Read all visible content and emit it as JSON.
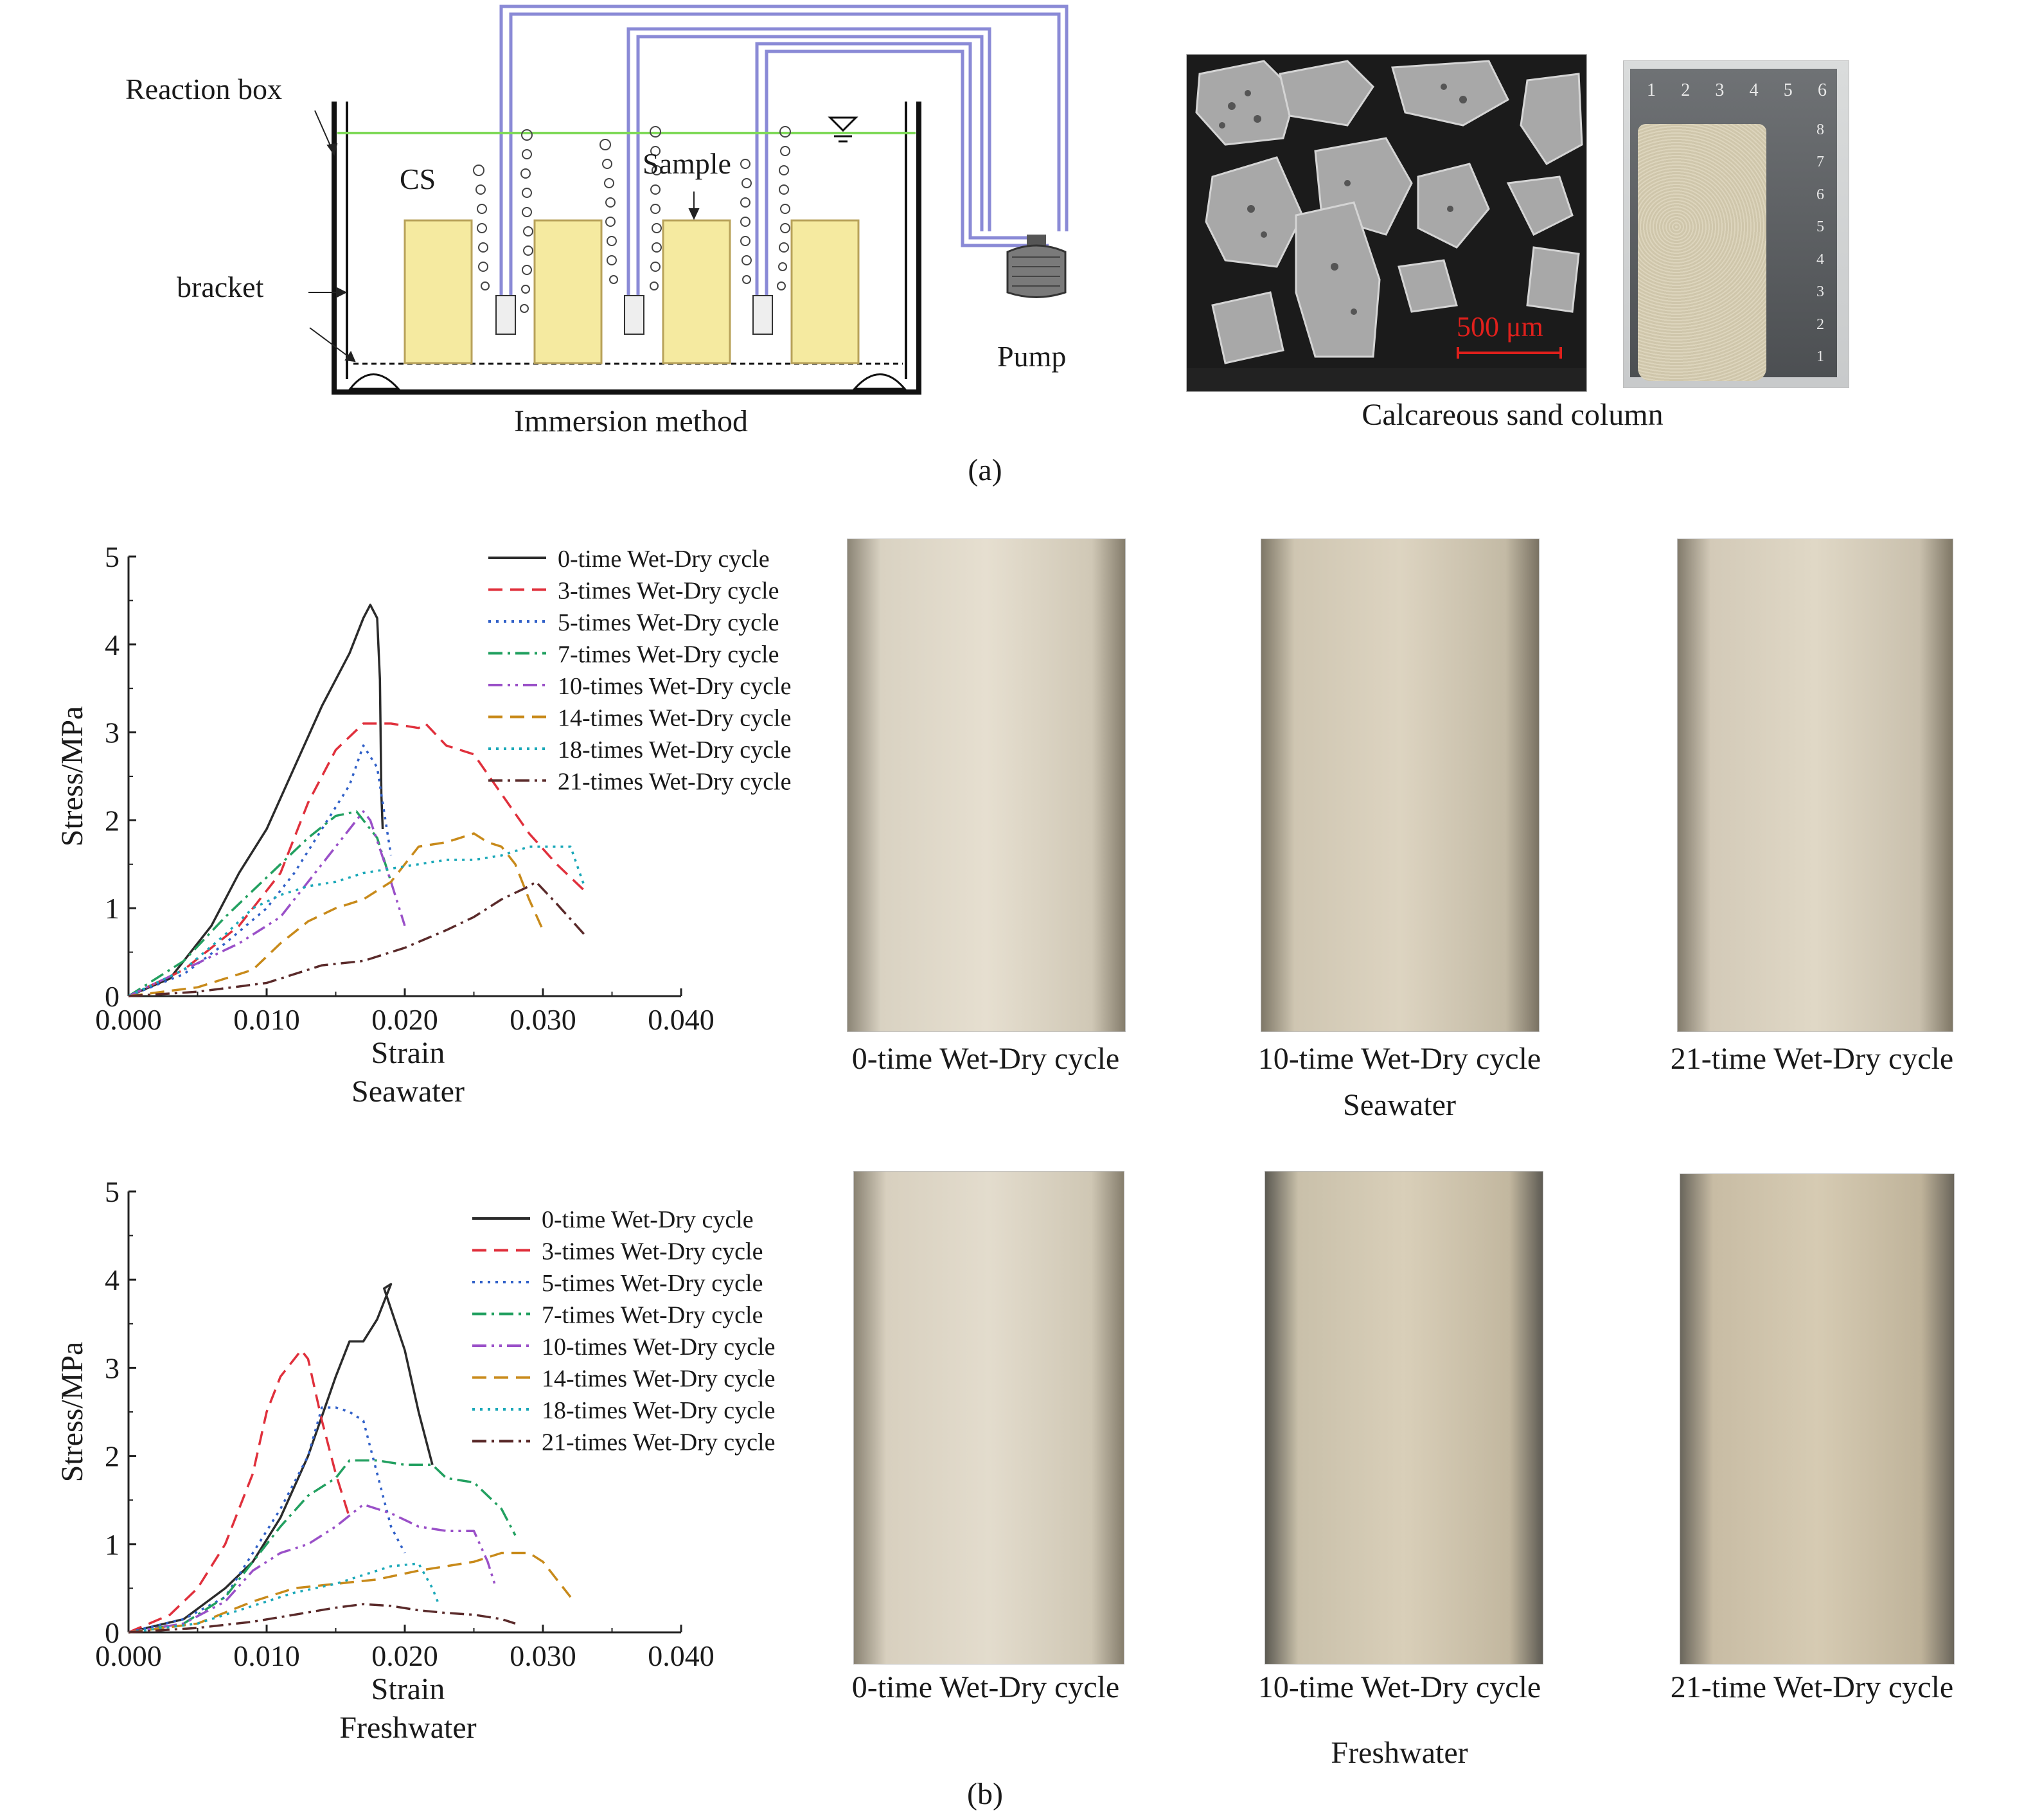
{
  "panel_a": {
    "schematic": {
      "reaction_box_label": "Reaction box",
      "cs_label": "CS",
      "sample_label": "Sample",
      "bracket_label": "bracket",
      "pump_label": "Pump",
      "caption": "Immersion method",
      "colors": {
        "water_line": "#7ed957",
        "tube": "#8a8ad6",
        "sand": "#f5eaa0",
        "sand_border": "#b8a25a"
      }
    },
    "sem": {
      "scale_bar_label": "500 μm",
      "scale_color": "#e0201c"
    },
    "ruler_ticks": [
      "1",
      "2",
      "3",
      "4",
      "5",
      "6"
    ],
    "ruler_side_ticks": [
      "8",
      "7",
      "6",
      "5",
      "4",
      "3",
      "2",
      "1"
    ],
    "photo_caption": "Calcareous sand column",
    "label": "(a)"
  },
  "panel_b": {
    "label": "(b)",
    "seawater_caption": "Seawater",
    "freshwater_caption": "Freshwater",
    "photo_captions_sea": [
      "0-time Wet-Dry cycle",
      "10-time Wet-Dry cycle",
      "21-time Wet-Dry cycle"
    ],
    "photo_captions_fresh": [
      "0-time Wet-Dry cycle",
      "10-time Wet-Dry cycle",
      "21-time Wet-Dry cycle"
    ]
  },
  "chart_data": [
    {
      "type": "line",
      "title": "Seawater",
      "xlabel": "Strain",
      "ylabel": "Stress/MPa",
      "xlim": [
        0,
        0.04
      ],
      "ylim": [
        0,
        5
      ],
      "xticks": [
        "0.000",
        "0.010",
        "0.020",
        "0.030",
        "0.040"
      ],
      "yticks": [
        "0",
        "1",
        "2",
        "3",
        "4",
        "5"
      ],
      "legend_position": "top-right",
      "series": [
        {
          "name": "0-time Wet-Dry cycle",
          "color": "#2b2b2b",
          "dash": "solid",
          "points": [
            [
              0,
              0
            ],
            [
              0.003,
              0.2
            ],
            [
              0.006,
              0.8
            ],
            [
              0.008,
              1.4
            ],
            [
              0.01,
              1.9
            ],
            [
              0.012,
              2.6
            ],
            [
              0.014,
              3.3
            ],
            [
              0.016,
              3.9
            ],
            [
              0.017,
              4.3
            ],
            [
              0.0175,
              4.45
            ],
            [
              0.018,
              4.3
            ],
            [
              0.0182,
              3.6
            ],
            [
              0.0183,
              2.3
            ],
            [
              0.0184,
              1.9
            ]
          ]
        },
        {
          "name": "3-times Wet-Dry cycle",
          "color": "#e0303c",
          "dash": "dashed",
          "points": [
            [
              0,
              0
            ],
            [
              0.004,
              0.3
            ],
            [
              0.008,
              0.8
            ],
            [
              0.011,
              1.4
            ],
            [
              0.013,
              2.2
            ],
            [
              0.015,
              2.8
            ],
            [
              0.017,
              3.1
            ],
            [
              0.019,
              3.1
            ],
            [
              0.021,
              3.05
            ],
            [
              0.0215,
              3.1
            ],
            [
              0.023,
              2.85
            ],
            [
              0.025,
              2.75
            ],
            [
              0.027,
              2.3
            ],
            [
              0.029,
              1.85
            ],
            [
              0.031,
              1.5
            ],
            [
              0.033,
              1.2
            ]
          ]
        },
        {
          "name": "5-times Wet-Dry cycle",
          "color": "#3060c8",
          "dash": "dotted",
          "points": [
            [
              0,
              0
            ],
            [
              0.004,
              0.25
            ],
            [
              0.007,
              0.6
            ],
            [
              0.01,
              1.0
            ],
            [
              0.012,
              1.4
            ],
            [
              0.014,
              1.9
            ],
            [
              0.016,
              2.4
            ],
            [
              0.017,
              2.85
            ],
            [
              0.018,
              2.6
            ],
            [
              0.019,
              1.6
            ]
          ]
        },
        {
          "name": "7-times Wet-Dry cycle",
          "color": "#22a060",
          "dash": "dashdot",
          "points": [
            [
              0,
              0
            ],
            [
              0.004,
              0.4
            ],
            [
              0.007,
              0.9
            ],
            [
              0.009,
              1.2
            ],
            [
              0.011,
              1.5
            ],
            [
              0.013,
              1.8
            ],
            [
              0.015,
              2.05
            ],
            [
              0.0165,
              2.1
            ],
            [
              0.018,
              1.8
            ],
            [
              0.019,
              1.3
            ]
          ]
        },
        {
          "name": "10-times Wet-Dry cycle",
          "color": "#9a50c8",
          "dash": "dashdotdot",
          "points": [
            [
              0,
              0
            ],
            [
              0.004,
              0.3
            ],
            [
              0.008,
              0.6
            ],
            [
              0.011,
              0.9
            ],
            [
              0.013,
              1.3
            ],
            [
              0.015,
              1.7
            ],
            [
              0.017,
              2.1
            ],
            [
              0.0175,
              2.0
            ],
            [
              0.019,
              1.3
            ],
            [
              0.02,
              0.8
            ]
          ]
        },
        {
          "name": "14-times Wet-Dry cycle",
          "color": "#c88a1a",
          "dash": "dashed",
          "points": [
            [
              0,
              0
            ],
            [
              0.005,
              0.1
            ],
            [
              0.009,
              0.3
            ],
            [
              0.011,
              0.6
            ],
            [
              0.013,
              0.85
            ],
            [
              0.015,
              1.0
            ],
            [
              0.017,
              1.1
            ],
            [
              0.019,
              1.3
            ],
            [
              0.021,
              1.7
            ],
            [
              0.023,
              1.75
            ],
            [
              0.024,
              1.8
            ],
            [
              0.025,
              1.85
            ],
            [
              0.026,
              1.75
            ],
            [
              0.027,
              1.7
            ],
            [
              0.028,
              1.5
            ],
            [
              0.029,
              1.1
            ],
            [
              0.03,
              0.75
            ]
          ]
        },
        {
          "name": "18-times Wet-Dry cycle",
          "color": "#1aa8b8",
          "dash": "dotted",
          "points": [
            [
              0,
              0
            ],
            [
              0.004,
              0.3
            ],
            [
              0.007,
              0.7
            ],
            [
              0.009,
              1.0
            ],
            [
              0.011,
              1.15
            ],
            [
              0.013,
              1.25
            ],
            [
              0.015,
              1.3
            ],
            [
              0.017,
              1.4
            ],
            [
              0.019,
              1.45
            ],
            [
              0.021,
              1.5
            ],
            [
              0.023,
              1.55
            ],
            [
              0.025,
              1.55
            ],
            [
              0.027,
              1.6
            ],
            [
              0.029,
              1.7
            ],
            [
              0.031,
              1.7
            ],
            [
              0.032,
              1.7
            ],
            [
              0.033,
              1.25
            ]
          ]
        },
        {
          "name": "21-times Wet-Dry cycle",
          "color": "#5a2a2a",
          "dash": "dashdot",
          "points": [
            [
              0,
              0
            ],
            [
              0.005,
              0.05
            ],
            [
              0.01,
              0.15
            ],
            [
              0.012,
              0.25
            ],
            [
              0.014,
              0.35
            ],
            [
              0.017,
              0.4
            ],
            [
              0.02,
              0.55
            ],
            [
              0.023,
              0.75
            ],
            [
              0.025,
              0.9
            ],
            [
              0.027,
              1.1
            ],
            [
              0.029,
              1.25
            ],
            [
              0.0295,
              1.3
            ],
            [
              0.031,
              1.05
            ],
            [
              0.033,
              0.7
            ]
          ]
        }
      ]
    },
    {
      "type": "line",
      "title": "Freshwater",
      "xlabel": "Strain",
      "ylabel": "Stress/MPa",
      "xlim": [
        0,
        0.04
      ],
      "ylim": [
        0,
        5
      ],
      "xticks": [
        "0.000",
        "0.010",
        "0.020",
        "0.030",
        "0.040"
      ],
      "yticks": [
        "0",
        "1",
        "2",
        "3",
        "4",
        "5"
      ],
      "legend_position": "top-right",
      "series": [
        {
          "name": "0-time Wet-Dry cycle",
          "color": "#2b2b2b",
          "dash": "solid",
          "points": [
            [
              0,
              0
            ],
            [
              0.004,
              0.15
            ],
            [
              0.007,
              0.5
            ],
            [
              0.009,
              0.8
            ],
            [
              0.011,
              1.3
            ],
            [
              0.013,
              2.0
            ],
            [
              0.015,
              2.9
            ],
            [
              0.016,
              3.3
            ],
            [
              0.017,
              3.3
            ],
            [
              0.018,
              3.55
            ],
            [
              0.019,
              3.95
            ],
            [
              0.0185,
              3.9
            ],
            [
              0.02,
              3.2
            ],
            [
              0.021,
              2.5
            ],
            [
              0.022,
              1.9
            ]
          ]
        },
        {
          "name": "3-times Wet-Dry cycle",
          "color": "#e0303c",
          "dash": "dashed",
          "points": [
            [
              0,
              0
            ],
            [
              0.003,
              0.2
            ],
            [
              0.005,
              0.5
            ],
            [
              0.007,
              1.0
            ],
            [
              0.009,
              1.8
            ],
            [
              0.01,
              2.5
            ],
            [
              0.011,
              2.9
            ],
            [
              0.012,
              3.1
            ],
            [
              0.0125,
              3.2
            ],
            [
              0.013,
              3.1
            ],
            [
              0.014,
              2.4
            ],
            [
              0.015,
              1.8
            ],
            [
              0.016,
              1.3
            ]
          ]
        },
        {
          "name": "5-times Wet-Dry cycle",
          "color": "#3060c8",
          "dash": "dotted",
          "points": [
            [
              0,
              0
            ],
            [
              0.004,
              0.15
            ],
            [
              0.007,
              0.4
            ],
            [
              0.009,
              0.9
            ],
            [
              0.011,
              1.4
            ],
            [
              0.013,
              2.0
            ],
            [
              0.014,
              2.55
            ],
            [
              0.015,
              2.55
            ],
            [
              0.016,
              2.5
            ],
            [
              0.017,
              2.4
            ],
            [
              0.018,
              1.8
            ],
            [
              0.019,
              1.2
            ],
            [
              0.02,
              0.9
            ]
          ]
        },
        {
          "name": "7-times Wet-Dry cycle",
          "color": "#22a060",
          "dash": "dashdot",
          "points": [
            [
              0,
              0
            ],
            [
              0.004,
              0.1
            ],
            [
              0.007,
              0.4
            ],
            [
              0.009,
              0.8
            ],
            [
              0.011,
              1.2
            ],
            [
              0.013,
              1.55
            ],
            [
              0.015,
              1.75
            ],
            [
              0.016,
              1.95
            ],
            [
              0.018,
              1.95
            ],
            [
              0.02,
              1.9
            ],
            [
              0.022,
              1.9
            ],
            [
              0.023,
              1.75
            ],
            [
              0.025,
              1.7
            ],
            [
              0.027,
              1.4
            ],
            [
              0.028,
              1.1
            ]
          ]
        },
        {
          "name": "10-times Wet-Dry cycle",
          "color": "#9a50c8",
          "dash": "dashdotdot",
          "points": [
            [
              0,
              0
            ],
            [
              0.004,
              0.1
            ],
            [
              0.007,
              0.35
            ],
            [
              0.009,
              0.7
            ],
            [
              0.011,
              0.9
            ],
            [
              0.013,
              1.0
            ],
            [
              0.015,
              1.2
            ],
            [
              0.017,
              1.45
            ],
            [
              0.019,
              1.35
            ],
            [
              0.021,
              1.2
            ],
            [
              0.023,
              1.15
            ],
            [
              0.025,
              1.15
            ],
            [
              0.026,
              0.8
            ],
            [
              0.0265,
              0.55
            ]
          ]
        },
        {
          "name": "14-times Wet-Dry cycle",
          "color": "#c88a1a",
          "dash": "dashed",
          "points": [
            [
              0,
              0
            ],
            [
              0.005,
              0.1
            ],
            [
              0.009,
              0.35
            ],
            [
              0.012,
              0.5
            ],
            [
              0.015,
              0.55
            ],
            [
              0.018,
              0.6
            ],
            [
              0.021,
              0.7
            ],
            [
              0.023,
              0.75
            ],
            [
              0.025,
              0.8
            ],
            [
              0.027,
              0.9
            ],
            [
              0.029,
              0.9
            ],
            [
              0.03,
              0.8
            ],
            [
              0.031,
              0.6
            ],
            [
              0.032,
              0.4
            ]
          ]
        },
        {
          "name": "18-times Wet-Dry cycle",
          "color": "#1aa8b8",
          "dash": "dotted",
          "points": [
            [
              0,
              0
            ],
            [
              0.005,
              0.1
            ],
            [
              0.009,
              0.3
            ],
            [
              0.012,
              0.45
            ],
            [
              0.015,
              0.55
            ],
            [
              0.017,
              0.65
            ],
            [
              0.019,
              0.75
            ],
            [
              0.021,
              0.78
            ],
            [
              0.022,
              0.5
            ],
            [
              0.0225,
              0.3
            ]
          ]
        },
        {
          "name": "21-times Wet-Dry cycle",
          "color": "#5a2a2a",
          "dash": "dashdot",
          "points": [
            [
              0,
              0
            ],
            [
              0.005,
              0.05
            ],
            [
              0.009,
              0.12
            ],
            [
              0.012,
              0.2
            ],
            [
              0.015,
              0.28
            ],
            [
              0.017,
              0.32
            ],
            [
              0.019,
              0.3
            ],
            [
              0.021,
              0.25
            ],
            [
              0.023,
              0.22
            ],
            [
              0.025,
              0.2
            ],
            [
              0.027,
              0.15
            ],
            [
              0.028,
              0.1
            ]
          ]
        }
      ]
    }
  ]
}
